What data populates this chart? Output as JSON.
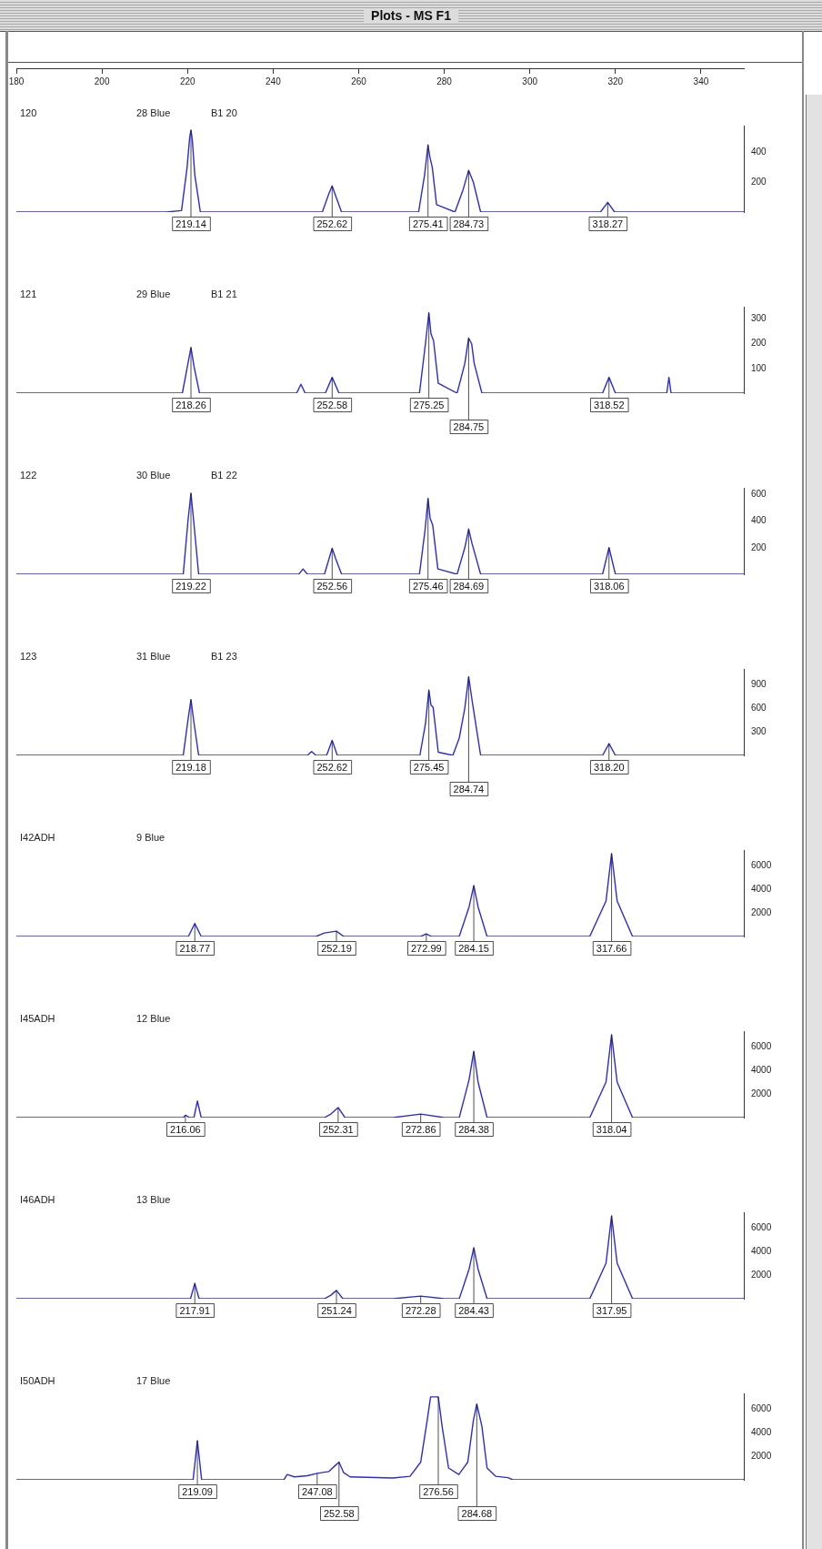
{
  "chart_data": [
    {
      "type": "line",
      "title": "120",
      "subtitle": "28 Blue",
      "color": "#2b2bd6",
      "xlim": [
        180,
        350
      ],
      "xticks": [
        180,
        200,
        220,
        240,
        260,
        280,
        300,
        320,
        340
      ],
      "ylim": [
        0,
        580
      ],
      "yticks": [
        200,
        400
      ],
      "x": [
        180,
        200,
        215,
        218.6,
        219.9,
        220.5,
        220.8,
        221.1,
        221.7,
        223,
        240,
        251.5,
        253,
        253.8,
        254.6,
        256,
        270,
        274,
        275.4,
        276.2,
        276.6,
        277.2,
        278.2,
        282.5,
        284.4,
        285.7,
        286.8,
        288.5,
        310,
        316.5,
        318.2,
        319.8,
        340,
        350
      ],
      "values": [
        0,
        0,
        0,
        10,
        300,
        500,
        550,
        490,
        250,
        0,
        0,
        0,
        120,
        175,
        110,
        0,
        0,
        0,
        250,
        450,
        375,
        300,
        50,
        0,
        150,
        280,
        200,
        0,
        0,
        0,
        65,
        0,
        0,
        0
      ],
      "annotations": [
        "Plots - MS F1",
        "B1 20",
        {
          "text": "219.14",
          "x": 220.8,
          "y": 550
        },
        {
          "text": "252.62",
          "x": 253.8,
          "y": 175
        },
        {
          "text": "275.41",
          "x": 276.2,
          "y": 450
        },
        {
          "text": "284.73",
          "x": 285.7,
          "y": 280
        },
        {
          "text": "318.27",
          "x": 318.2,
          "y": 65
        }
      ]
    },
    {
      "type": "line",
      "title": "121",
      "subtitle": "29 Blue",
      "color": "#2b2bd6",
      "xlim": [
        180,
        350
      ],
      "tick_labels": "y",
      "ylim": [
        0,
        350
      ],
      "yticks": [
        100,
        200,
        300
      ],
      "x": [
        180,
        210,
        218.8,
        220.1,
        220.8,
        221.5,
        222.8,
        240,
        245.5,
        246.5,
        247.5,
        252.2,
        253.8,
        255.4,
        270,
        274.2,
        275.6,
        276.4,
        276.9,
        277.5,
        278.6,
        283,
        284.8,
        285.7,
        286.4,
        287,
        288.8,
        310,
        317,
        318.5,
        320,
        332,
        332.5,
        333,
        350
      ],
      "values": [
        0,
        0,
        0,
        120,
        185,
        110,
        0,
        0,
        0,
        36,
        0,
        0,
        64,
        0,
        0,
        0,
        200,
        325,
        240,
        212,
        40,
        0,
        120,
        223,
        200,
        120,
        0,
        0,
        0,
        64,
        0,
        0,
        64,
        0,
        0
      ],
      "annotations": [
        "B1 21",
        {
          "text": "218.26",
          "x": 220.8,
          "y": 185
        },
        {
          "text": "252.58",
          "x": 253.8,
          "y": 64
        },
        {
          "text": "275.25",
          "x": 276.4,
          "y": 325
        },
        {
          "text": "284.75",
          "x": 285.7,
          "y": 223
        },
        {
          "text": "318.52",
          "x": 318.5,
          "y": 64
        }
      ]
    },
    {
      "type": "line",
      "title": "122",
      "subtitle": "30 Blue",
      "color": "#2b2bd6",
      "xlim": [
        180,
        350
      ],
      "tick_labels": "y",
      "ylim": [
        0,
        650
      ],
      "yticks": [
        200,
        400,
        600
      ],
      "x": [
        180,
        210,
        219,
        220.1,
        220.8,
        221.5,
        222.6,
        240,
        246,
        247,
        248,
        252,
        253.1,
        253.8,
        254.6,
        256,
        270,
        274.2,
        275.5,
        276.2,
        276.7,
        277.3,
        278.5,
        283,
        284.8,
        285.7,
        286.5,
        288.5,
        310,
        317,
        318.5,
        320,
        350
      ],
      "values": [
        0,
        0,
        0,
        400,
        610,
        380,
        0,
        0,
        0,
        40,
        0,
        0,
        120,
        195,
        120,
        0,
        0,
        0,
        330,
        570,
        420,
        370,
        40,
        0,
        200,
        340,
        230,
        0,
        0,
        0,
        200,
        0,
        0
      ],
      "annotations": [
        "B1 22",
        {
          "text": "219.22",
          "x": 220.8,
          "y": 610
        },
        {
          "text": "252.56",
          "x": 253.8,
          "y": 195
        },
        {
          "text": "275.46",
          "x": 276.2,
          "y": 570
        },
        {
          "text": "284.69",
          "x": 285.7,
          "y": 340
        },
        {
          "text": "318.06",
          "x": 318.5,
          "y": 200
        }
      ]
    },
    {
      "type": "line",
      "title": "123",
      "subtitle": "31 Blue",
      "color": "#2b2bd6",
      "xlim": [
        180,
        350
      ],
      "tick_labels": "y",
      "ylim": [
        0,
        1100
      ],
      "yticks": [
        300,
        600,
        900
      ],
      "x": [
        180,
        210,
        219,
        220.1,
        220.8,
        221.5,
        222.6,
        240,
        248,
        249,
        250,
        252.5,
        253.8,
        255,
        270,
        274.3,
        275.6,
        276.4,
        276.9,
        277.4,
        278.6,
        282,
        283.5,
        284.8,
        285.7,
        286.5,
        288.5,
        310,
        317,
        318.5,
        320,
        350
      ],
      "values": [
        0,
        0,
        0,
        450,
        710,
        420,
        0,
        0,
        0,
        50,
        0,
        0,
        190,
        0,
        0,
        0,
        400,
        830,
        640,
        610,
        40,
        0,
        220,
        600,
        1000,
        700,
        0,
        0,
        0,
        150,
        0,
        0
      ],
      "annotations": [
        "B1 23",
        {
          "text": "219.18",
          "x": 220.8,
          "y": 710
        },
        {
          "text": "252.62",
          "x": 253.8,
          "y": 190
        },
        {
          "text": "275.45",
          "x": 276.4,
          "y": 830
        },
        {
          "text": "284.74",
          "x": 285.7,
          "y": 1000
        },
        {
          "text": "318.20",
          "x": 318.5,
          "y": 150
        }
      ]
    },
    {
      "type": "line",
      "title": "I42ADH",
      "subtitle": "9 Blue",
      "color": "#2b2bd6",
      "xlim": [
        180,
        350
      ],
      "tick_labels": "y",
      "ylim": [
        0,
        7300
      ],
      "yticks": [
        2000,
        4000,
        6000
      ],
      "x": [
        180,
        215,
        220.2,
        221.7,
        223.2,
        245,
        250,
        252,
        254.8,
        256.5,
        270,
        274.5,
        275.8,
        277,
        283.5,
        285.8,
        286.9,
        287.9,
        290,
        314,
        317.8,
        319.1,
        320.4,
        324,
        350
      ],
      "values": [
        0,
        0,
        0,
        1100,
        0,
        0,
        0,
        300,
        450,
        0,
        0,
        0,
        230,
        0,
        0,
        2500,
        4300,
        2500,
        0,
        0,
        3000,
        7000,
        3000,
        0,
        0
      ],
      "annotations": [
        {
          "text": "218.77",
          "x": 221.7,
          "y": 1100
        },
        {
          "text": "252.19",
          "x": 254.8,
          "y": 450
        },
        {
          "text": "272.99",
          "x": 275.8,
          "y": 230
        },
        {
          "text": "284.15",
          "x": 286.9,
          "y": 4300
        },
        {
          "text": "317.66",
          "x": 319.1,
          "y": 7000
        }
      ]
    },
    {
      "type": "line",
      "title": "I45ADH",
      "subtitle": "12 Blue",
      "color": "#2b2bd6",
      "xlim": [
        180,
        350
      ],
      "tick_labels": "y",
      "ylim": [
        0,
        7300
      ],
      "yticks": [
        2000,
        4000,
        6000
      ],
      "x": [
        180,
        215,
        219,
        219.5,
        220.5,
        221.5,
        222.3,
        223.2,
        245,
        252,
        253.5,
        255.2,
        256.8,
        268,
        274.5,
        280,
        283.5,
        285.8,
        286.9,
        287.9,
        290,
        314,
        317.8,
        319.1,
        320.4,
        324,
        350
      ],
      "values": [
        0,
        0,
        0,
        200,
        0,
        0,
        1400,
        0,
        0,
        0,
        300,
        850,
        0,
        0,
        300,
        0,
        0,
        3200,
        5600,
        3000,
        0,
        0,
        3000,
        7000,
        3000,
        0,
        0
      ],
      "annotations": [
        {
          "text": "216.06",
          "x": 219.5,
          "y": 200
        },
        {
          "text": "252.31",
          "x": 255.2,
          "y": 850
        },
        {
          "text": "272.86",
          "x": 274.5,
          "y": 300
        },
        {
          "text": "284.38",
          "x": 286.9,
          "y": 5600
        },
        {
          "text": "318.04",
          "x": 319.1,
          "y": 7000
        }
      ]
    },
    {
      "type": "line",
      "title": "I46ADH",
      "subtitle": "13 Blue",
      "color": "#2b2bd6",
      "xlim": [
        180,
        350
      ],
      "tick_labels": "y",
      "ylim": [
        0,
        7300
      ],
      "yticks": [
        2000,
        4000,
        6000
      ],
      "x": [
        180,
        216,
        220.7,
        221.7,
        222.7,
        245,
        252,
        253.5,
        254.8,
        256.3,
        268,
        274.5,
        280,
        283.5,
        285.8,
        286.9,
        287.9,
        290,
        314,
        317.8,
        319.1,
        320.4,
        324,
        350
      ],
      "values": [
        0,
        0,
        0,
        1300,
        0,
        0,
        0,
        300,
        700,
        0,
        0,
        220,
        0,
        0,
        2500,
        4300,
        2500,
        0,
        0,
        3000,
        7000,
        3000,
        0,
        0
      ],
      "annotations": [
        {
          "text": "217.91",
          "x": 221.7,
          "y": 1300
        },
        {
          "text": "251.24",
          "x": 254.8,
          "y": 700
        },
        {
          "text": "272.28",
          "x": 274.5,
          "y": 220
        },
        {
          "text": "284.43",
          "x": 286.9,
          "y": 4300
        },
        {
          "text": "317.95",
          "x": 319.1,
          "y": 7000
        }
      ]
    },
    {
      "type": "line",
      "title": "I50ADH",
      "subtitle": "17 Blue",
      "color": "#2b2bd6",
      "xlim": [
        180,
        350
      ],
      "tick_labels": "y",
      "ylim": [
        0,
        7300
      ],
      "yticks": [
        2000,
        4000,
        6000
      ],
      "x": [
        180,
        219,
        221.3,
        222.3,
        223.3,
        240,
        242.5,
        243.3,
        245,
        248,
        250.3,
        253,
        254.5,
        255.4,
        256.5,
        258,
        268,
        272,
        274.5,
        276,
        276.8,
        278.6,
        279.5,
        281,
        283.4,
        285.5,
        286.8,
        287.6,
        288.8,
        290,
        292,
        294.9,
        296,
        350
      ],
      "values": [
        0,
        0,
        0,
        3300,
        0,
        0,
        0,
        450,
        250,
        350,
        550,
        700,
        1200,
        1500,
        600,
        250,
        150,
        300,
        1500,
        5000,
        7000,
        7000,
        4500,
        1000,
        450,
        1500,
        5000,
        6400,
        4500,
        1000,
        300,
        180,
        0,
        0
      ],
      "annotations": [
        {
          "text": "219.09",
          "x": 222.3,
          "y": 3300
        },
        {
          "text": "247.08",
          "x": 250.3,
          "y": 550
        },
        {
          "text": "252.58",
          "x": 255.4,
          "y": 1500
        },
        {
          "text": "276.56",
          "x": 278.6,
          "y": 7000
        },
        {
          "text": "284.68",
          "x": 287.6,
          "y": 6400
        }
      ]
    }
  ]
}
